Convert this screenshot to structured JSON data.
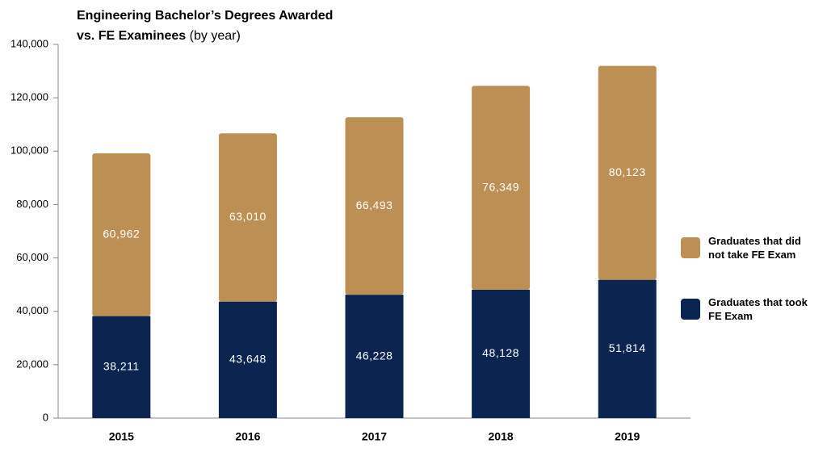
{
  "chart_data": {
    "type": "stacked-bar",
    "title": "Engineering Bachelor’s Degrees Awarded",
    "title_line2": "vs. FE Examinees",
    "title_note": "(by year)",
    "categories": [
      "2015",
      "2016",
      "2017",
      "2018",
      "2019"
    ],
    "series": [
      {
        "name": "Graduates that took FE Exam",
        "color": "#0b2550",
        "values": [
          38211,
          43648,
          46228,
          48128,
          51814
        ],
        "value_labels": [
          "38,211",
          "43,648",
          "46,228",
          "48,128",
          "51,814"
        ]
      },
      {
        "name": "Graduates that did not take FE Exam",
        "color": "#bc8f55",
        "values": [
          60962,
          63010,
          66493,
          76349,
          80123
        ],
        "value_labels": [
          "60,962",
          "63,010",
          "66,493",
          "76,349",
          "80,123"
        ]
      }
    ],
    "ylim": [
      0,
      140000
    ],
    "yticks": [
      0,
      {
        "value": 20000,
        "label": "20,000"
      },
      {
        "value": 40000,
        "label": "40,000"
      },
      {
        "value": 60000,
        "label": "60,000"
      },
      {
        "value": 80000,
        "label": "80,000"
      },
      {
        "value": 100000,
        "label": "100,000"
      },
      {
        "value": 120000,
        "label": "120,000"
      },
      {
        "value": 140000,
        "label": "140,000"
      }
    ],
    "grid": false
  }
}
